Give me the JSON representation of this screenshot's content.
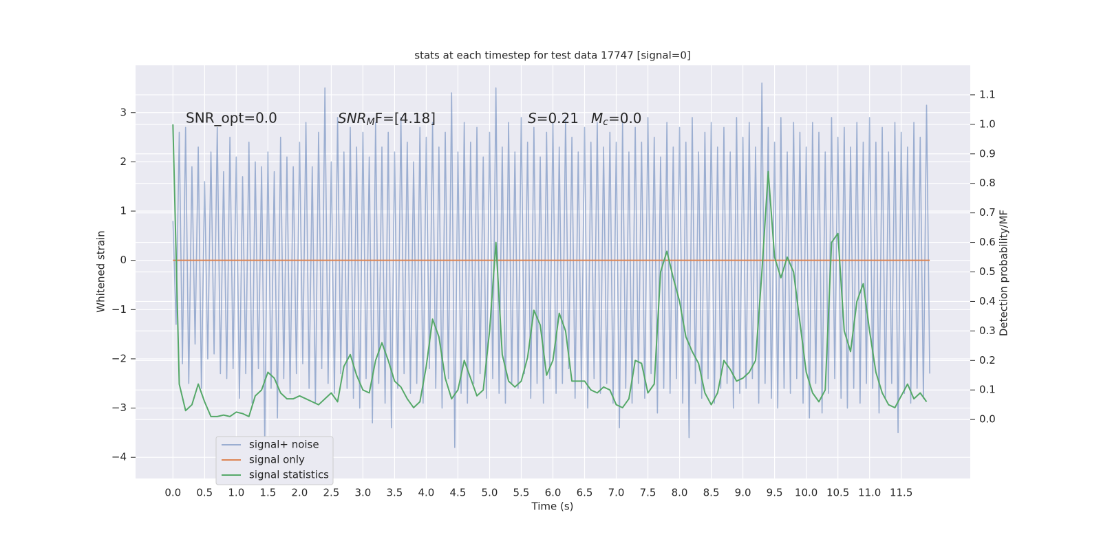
{
  "chart_data": {
    "type": "line",
    "title": "stats at each timestep for test data 17747 [signal=0]",
    "xlabel": "Time (s)",
    "ylabel": "Whitened strain",
    "y2label": "Detection probability/MF",
    "annotations": [
      {
        "text": "SNR_opt=0.0"
      },
      {
        "symbol": "SNR",
        "sub": "M",
        "rest": "F=[4.18]"
      },
      {
        "symbol": "S",
        "rest": "=0.21"
      },
      {
        "symbol": "M",
        "sub": "c",
        "rest": "=0.0"
      }
    ],
    "xlim": [
      -0.59,
      12.59
    ],
    "ylim": [
      -4.43,
      3.96
    ],
    "y2lim": [
      -0.2,
      1.2
    ],
    "xticks": [
      {
        "value": 0,
        "label": "0.0"
      },
      0.5,
      {
        "value": 1,
        "label": "1.0"
      },
      1.5,
      {
        "value": 2,
        "label": "2.0"
      },
      2.5,
      {
        "value": 3,
        "label": "3.0"
      },
      3.5,
      {
        "value": 4,
        "label": "4.0"
      },
      4.5,
      {
        "value": 5,
        "label": "5.0"
      },
      5.5,
      {
        "value": 6,
        "label": "6.0"
      },
      6.5,
      {
        "value": 7,
        "label": "7.0"
      },
      7.5,
      {
        "value": 8,
        "label": "8.0"
      },
      8.5,
      {
        "value": 9,
        "label": "9.0"
      },
      9.5,
      {
        "value": 10,
        "label": "10.0"
      },
      10.5,
      {
        "value": 11,
        "label": "11.0"
      },
      11.5
    ],
    "yticks": [
      {
        "value": -4,
        "label": "−4"
      },
      {
        "value": -3,
        "label": "−3"
      },
      {
        "value": -2,
        "label": "−2"
      },
      {
        "value": -1,
        "label": "−1"
      },
      0,
      1,
      2,
      3
    ],
    "y2ticks": [
      {
        "value": 0,
        "label": "0.0"
      },
      0.1,
      0.2,
      0.3,
      0.4,
      0.5,
      0.6,
      0.7,
      0.8,
      0.9,
      {
        "value": 1,
        "label": "1.0"
      },
      1.1
    ],
    "grid": true,
    "legend": "lower left",
    "series": [
      {
        "name": "signal+ noise",
        "color": "#4c72b0",
        "opacity": 0.5,
        "axis": "y",
        "x_step": 0.05,
        "values": [
          0.8,
          -1.3,
          2.6,
          -2.1,
          2.7,
          -2.5,
          1.9,
          -1.7,
          2.3,
          -2.6,
          1.6,
          -2.0,
          2.2,
          -1.9,
          2.7,
          -2.3,
          1.8,
          -2.4,
          2.5,
          -2.2,
          2.1,
          -2.8,
          1.7,
          -2.3,
          2.4,
          -2.9,
          2.0,
          -2.2,
          1.9,
          -3.7,
          2.2,
          -2.6,
          1.8,
          -3.2,
          2.5,
          -2.4,
          2.1,
          -2.7,
          1.9,
          -2.3,
          2.4,
          -2.1,
          2.8,
          -2.6,
          1.9,
          -2.9,
          2.6,
          -2.2,
          3.5,
          -2.5,
          2.0,
          -2.7,
          2.9,
          -2.3,
          2.2,
          -2.6,
          2.7,
          -2.8,
          2.3,
          -3.0,
          2.6,
          -2.4,
          2.1,
          -3.3,
          2.8,
          -2.5,
          2.3,
          -2.9,
          2.6,
          -3.4,
          2.2,
          -2.6,
          2.9,
          -2.3,
          2.4,
          -2.7,
          2.0,
          -2.5,
          2.7,
          -2.9,
          2.5,
          -2.2,
          2.8,
          -2.6,
          2.3,
          -3.0,
          2.6,
          -2.4,
          3.4,
          -3.8,
          2.2,
          -2.7,
          2.8,
          -2.9,
          2.4,
          -2.5,
          2.7,
          -2.3,
          2.1,
          -2.8,
          2.6,
          -2.4,
          3.5,
          -2.7,
          2.3,
          -2.9,
          2.8,
          -2.5,
          2.2,
          -2.6,
          2.9,
          -2.3,
          2.4,
          -2.8,
          2.7,
          -2.5,
          2.1,
          -2.9,
          2.6,
          -2.4,
          2.8,
          -2.7,
          2.3,
          -2.5,
          2.9,
          -2.2,
          2.5,
          -2.8,
          2.2,
          -2.6,
          2.7,
          -3.0,
          2.4,
          -2.4,
          2.8,
          -2.7,
          2.3,
          -2.5,
          2.6,
          -2.9,
          2.4,
          -3.4,
          2.8,
          -2.6,
          2.2,
          -2.9,
          2.7,
          -2.5,
          2.4,
          -2.8,
          2.9,
          -2.3,
          2.5,
          -3.1,
          2.1,
          -2.6,
          2.8,
          -2.7,
          2.3,
          -2.4,
          2.7,
          -2.9,
          2.4,
          -3.6,
          2.9,
          -2.5,
          2.2,
          -2.8,
          2.6,
          -2.4,
          2.8,
          -2.9,
          2.3,
          -2.6,
          2.7,
          -2.5,
          2.2,
          -3.0,
          2.9,
          -2.7,
          2.5,
          -2.6,
          2.8,
          -2.4,
          2.3,
          -2.9,
          3.6,
          -2.5,
          2.7,
          -2.8,
          2.4,
          -3.0,
          2.9,
          -2.6,
          2.2,
          -2.7,
          2.8,
          -2.4,
          2.6,
          -2.9,
          2.3,
          -3.2,
          2.8,
          -2.5,
          2.6,
          -3.1,
          2.2,
          -2.7,
          2.9,
          -2.4,
          2.5,
          -2.8,
          2.7,
          -3.0,
          2.3,
          -2.6,
          2.8,
          -2.9,
          2.4,
          -2.5,
          2.9,
          -2.6,
          2.4,
          -3.1,
          2.7,
          -2.8,
          2.2,
          -2.5,
          2.8,
          -3.5,
          2.6,
          -2.7,
          2.3,
          -2.9,
          2.8,
          -2.6,
          2.5,
          -2.8,
          3.15,
          -2.3
        ]
      },
      {
        "name": "signal only",
        "color": "#dd8452",
        "axis": "y",
        "x": [
          0,
          11.95
        ],
        "values": [
          0,
          0
        ]
      },
      {
        "name": "signal statistics",
        "color": "#55a868",
        "axis": "y2",
        "x_step": 0.1,
        "values": [
          1.0,
          0.12,
          0.03,
          0.05,
          0.12,
          0.06,
          0.01,
          0.01,
          0.015,
          0.01,
          0.025,
          0.02,
          0.01,
          0.08,
          0.1,
          0.16,
          0.14,
          0.09,
          0.07,
          0.07,
          0.08,
          0.07,
          0.06,
          0.05,
          0.07,
          0.09,
          0.06,
          0.18,
          0.22,
          0.15,
          0.1,
          0.09,
          0.2,
          0.26,
          0.2,
          0.13,
          0.11,
          0.07,
          0.04,
          0.06,
          0.18,
          0.34,
          0.28,
          0.14,
          0.07,
          0.1,
          0.2,
          0.14,
          0.08,
          0.1,
          0.3,
          0.6,
          0.22,
          0.13,
          0.11,
          0.13,
          0.21,
          0.37,
          0.32,
          0.15,
          0.2,
          0.36,
          0.3,
          0.13,
          0.13,
          0.13,
          0.1,
          0.09,
          0.11,
          0.1,
          0.05,
          0.04,
          0.07,
          0.2,
          0.19,
          0.09,
          0.12,
          0.5,
          0.57,
          0.48,
          0.4,
          0.28,
          0.23,
          0.19,
          0.09,
          0.05,
          0.09,
          0.2,
          0.17,
          0.13,
          0.14,
          0.16,
          0.2,
          0.5,
          0.84,
          0.55,
          0.48,
          0.55,
          0.5,
          0.33,
          0.16,
          0.09,
          0.06,
          0.1,
          0.6,
          0.63,
          0.3,
          0.23,
          0.4,
          0.46,
          0.3,
          0.16,
          0.09,
          0.05,
          0.04,
          0.08,
          0.12,
          0.07,
          0.09,
          0.06
        ]
      }
    ]
  }
}
